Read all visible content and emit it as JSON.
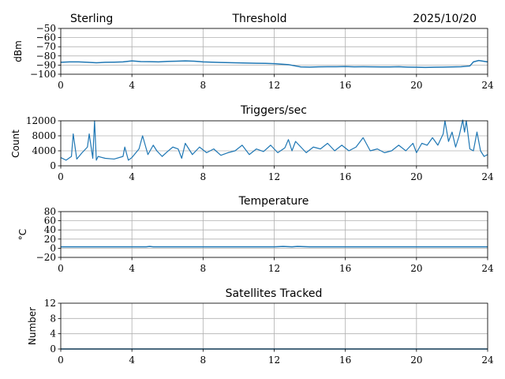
{
  "header": {
    "station": "Sterling",
    "date": "2025/10/20"
  },
  "chart_data": [
    {
      "type": "line",
      "title": "Threshold",
      "ylabel": "dBm",
      "xlabel": "",
      "xlim": [
        0,
        24
      ],
      "ylim": [
        -100,
        -50
      ],
      "xticks": [
        "0",
        "4",
        "8",
        "12",
        "16",
        "20",
        "24"
      ],
      "yticks": [
        "−100",
        "−90",
        "−80",
        "−70",
        "−60",
        "−50"
      ],
      "ytick_values": [
        -100,
        -90,
        -80,
        -70,
        -60,
        -50
      ],
      "grid": true,
      "color": "#1f77b4",
      "series": [
        {
          "name": "threshold",
          "x": [
            0,
            0.5,
            1,
            1.5,
            2,
            2.5,
            3,
            3.5,
            4,
            4.5,
            5,
            5.5,
            6,
            6.5,
            7,
            7.5,
            8,
            8.5,
            9,
            9.5,
            10,
            10.5,
            11,
            11.5,
            12,
            12.4,
            12.8,
            13.2,
            13.5,
            14,
            14.5,
            15,
            15.5,
            16,
            16.5,
            17,
            17.5,
            18,
            18.5,
            19,
            19.5,
            20,
            20.5,
            21,
            21.5,
            22,
            22.5,
            23,
            23.2,
            23.5,
            24
          ],
          "values": [
            -87,
            -86.5,
            -86.5,
            -87,
            -87.5,
            -87,
            -86.8,
            -86.5,
            -85.5,
            -86.2,
            -86.3,
            -86.5,
            -86,
            -85.8,
            -85.5,
            -85.8,
            -86.5,
            -86.8,
            -87.2,
            -87.4,
            -87.6,
            -87.8,
            -88,
            -88.2,
            -88.5,
            -89,
            -89.5,
            -91,
            -92,
            -92.2,
            -91.9,
            -91.8,
            -91.8,
            -91.6,
            -91.9,
            -91.8,
            -91.9,
            -92,
            -92,
            -91.8,
            -92.2,
            -92.4,
            -92.6,
            -92.3,
            -92.2,
            -92,
            -91.8,
            -91,
            -86.5,
            -85,
            -86.5
          ]
        }
      ]
    },
    {
      "type": "line",
      "title": "Triggers/sec",
      "ylabel": "Count",
      "xlabel": "",
      "xlim": [
        0,
        24
      ],
      "ylim": [
        0,
        12000
      ],
      "xticks": [
        "0",
        "4",
        "8",
        "12",
        "16",
        "20",
        "24"
      ],
      "yticks": [
        "0",
        "4000",
        "8000",
        "12000"
      ],
      "ytick_values": [
        0,
        4000,
        8000,
        12000
      ],
      "grid": true,
      "color": "#1f77b4",
      "series": [
        {
          "name": "triggers",
          "x": [
            0,
            0.3,
            0.6,
            0.7,
            0.9,
            1.2,
            1.5,
            1.6,
            1.8,
            1.9,
            2.0,
            2.1,
            2.5,
            3.0,
            3.5,
            3.6,
            3.8,
            4.0,
            4.4,
            4.6,
            4.9,
            5.2,
            5.4,
            5.7,
            6.0,
            6.3,
            6.6,
            6.8,
            7.0,
            7.4,
            7.8,
            8.2,
            8.6,
            9.0,
            9.4,
            9.8,
            10.2,
            10.6,
            11.0,
            11.4,
            11.8,
            12.2,
            12.6,
            12.8,
            13.0,
            13.2,
            13.5,
            13.8,
            14.2,
            14.6,
            15.0,
            15.4,
            15.8,
            16.2,
            16.6,
            17.0,
            17.4,
            17.8,
            18.2,
            18.6,
            19.0,
            19.4,
            19.6,
            19.8,
            20.0,
            20.3,
            20.6,
            20.9,
            21.2,
            21.5,
            21.6,
            21.8,
            22.0,
            22.2,
            22.4,
            22.6,
            22.7,
            22.8,
            23.0,
            23.2,
            23.4,
            23.6,
            23.8,
            24.0
          ],
          "values": [
            2200,
            1500,
            2500,
            8500,
            1800,
            3500,
            5000,
            8500,
            2000,
            12000,
            1500,
            2500,
            2000,
            1800,
            2500,
            5000,
            1500,
            2200,
            4500,
            8000,
            3000,
            5500,
            4000,
            2500,
            3800,
            5000,
            4500,
            2000,
            6000,
            3000,
            5000,
            3500,
            4500,
            2800,
            3500,
            4000,
            5500,
            3000,
            4500,
            3800,
            5500,
            3500,
            4800,
            7000,
            4000,
            6500,
            5000,
            3500,
            5000,
            4500,
            6000,
            4000,
            5500,
            4000,
            5000,
            7500,
            4000,
            4500,
            3500,
            4000,
            5500,
            4000,
            5000,
            6000,
            3500,
            6000,
            5500,
            7500,
            5500,
            8500,
            12000,
            6500,
            9000,
            5000,
            8000,
            12200,
            9000,
            12000,
            4500,
            4000,
            9000,
            4000,
            2500,
            3000
          ]
        }
      ]
    },
    {
      "type": "line",
      "title": "Temperature",
      "ylabel": "°C",
      "xlabel": "",
      "xlim": [
        0,
        24
      ],
      "ylim": [
        -20,
        80
      ],
      "xticks": [
        "0",
        "4",
        "8",
        "12",
        "16",
        "20",
        "24"
      ],
      "yticks": [
        "−20",
        "0",
        "20",
        "40",
        "60",
        "80"
      ],
      "ytick_values": [
        -20,
        0,
        20,
        40,
        60,
        80
      ],
      "grid": true,
      "color": "#1f77b4",
      "series": [
        {
          "name": "temperature",
          "x": [
            0,
            2,
            4,
            4.8,
            5.0,
            5.2,
            6,
            8,
            10,
            12,
            12.5,
            13.0,
            13.3,
            14,
            16,
            18,
            20,
            22,
            24
          ],
          "values": [
            3,
            3,
            3,
            3,
            4,
            3,
            3,
            3,
            3,
            3,
            4,
            3,
            4,
            3,
            3,
            3,
            3,
            3,
            3
          ]
        }
      ]
    },
    {
      "type": "line",
      "title": "Satellites Tracked",
      "ylabel": "Number",
      "xlabel": "",
      "xlim": [
        0,
        24
      ],
      "ylim": [
        0,
        12
      ],
      "xticks": [
        "0",
        "4",
        "8",
        "12",
        "16",
        "20",
        "24"
      ],
      "yticks": [
        "0",
        "4",
        "8",
        "12"
      ],
      "ytick_values": [
        0,
        4,
        8,
        12
      ],
      "grid": true,
      "color": "#1f77b4",
      "series": [
        {
          "name": "satellites",
          "x": [
            0,
            24
          ],
          "values": [
            0,
            0
          ]
        }
      ]
    }
  ]
}
